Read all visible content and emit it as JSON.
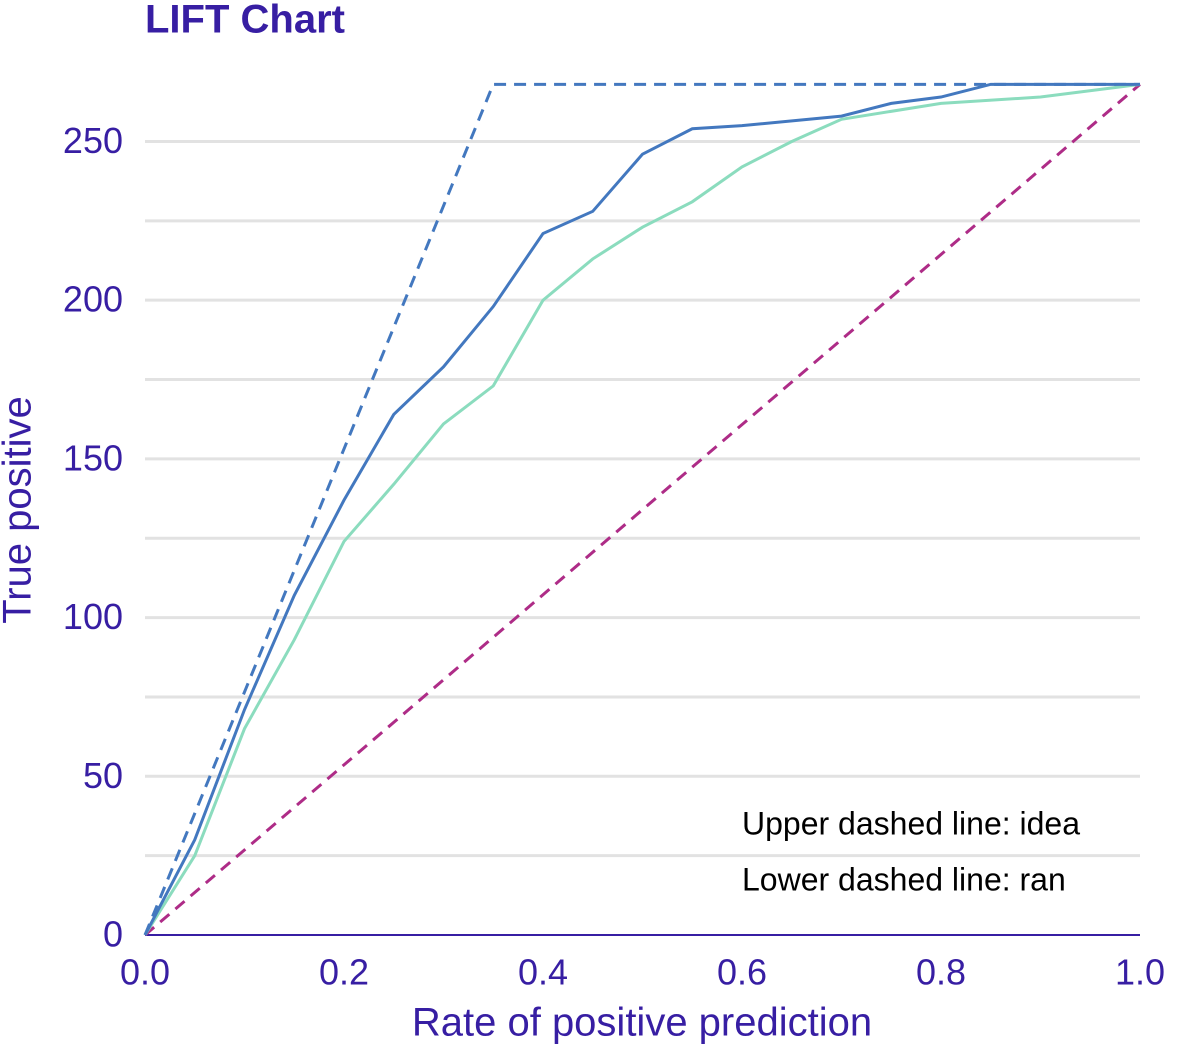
{
  "chart_data": {
    "type": "line",
    "title": "LIFT Chart",
    "xlabel": "Rate of positive prediction",
    "ylabel": "True positive",
    "xlim": [
      0,
      1
    ],
    "ylim": [
      0,
      270
    ],
    "xticks": [
      {
        "value": 0,
        "label": "0.0"
      },
      {
        "value": 0.2,
        "label": "0.2"
      },
      {
        "value": 0.4,
        "label": "0.4"
      },
      {
        "value": 0.6,
        "label": "0.6"
      },
      {
        "value": 0.8,
        "label": "0.8"
      },
      {
        "value": 1,
        "label": "1.0"
      }
    ],
    "yticks": [
      0,
      50,
      100,
      150,
      200,
      250
    ],
    "minor_yticks": [
      25,
      75,
      125,
      175,
      225
    ],
    "grid": true,
    "annotations": [
      "Upper dashed line: idea",
      "Lower dashed line: ran"
    ],
    "series": [
      {
        "color": "#4378bf",
        "dashed": true,
        "x": [
          0,
          0.35,
          1
        ],
        "values": [
          0,
          268,
          268
        ]
      },
      {
        "color": "#ae2c87",
        "dashed": true,
        "x": [
          0,
          1
        ],
        "values": [
          0,
          268
        ]
      },
      {
        "color": "#8bdcbe",
        "dashed": false,
        "x": [
          0,
          0.05,
          0.1,
          0.15,
          0.2,
          0.25,
          0.3,
          0.35,
          0.4,
          0.45,
          0.5,
          0.55,
          0.6,
          0.65,
          0.7,
          0.8,
          0.9,
          1
        ],
        "values": [
          0,
          25,
          65,
          93,
          124,
          142,
          161,
          173,
          200,
          213,
          223,
          231,
          242,
          250,
          257,
          262,
          264,
          268
        ]
      },
      {
        "color": "#4378bf",
        "dashed": false,
        "x": [
          0,
          0.05,
          0.1,
          0.15,
          0.2,
          0.25,
          0.3,
          0.35,
          0.4,
          0.45,
          0.5,
          0.55,
          0.6,
          0.7,
          0.75,
          0.8,
          0.85,
          0.9,
          1
        ],
        "values": [
          0,
          30,
          71,
          107,
          137,
          164,
          179,
          198,
          221,
          228,
          246,
          254,
          255,
          258,
          262,
          264,
          268,
          268,
          268
        ]
      }
    ]
  }
}
